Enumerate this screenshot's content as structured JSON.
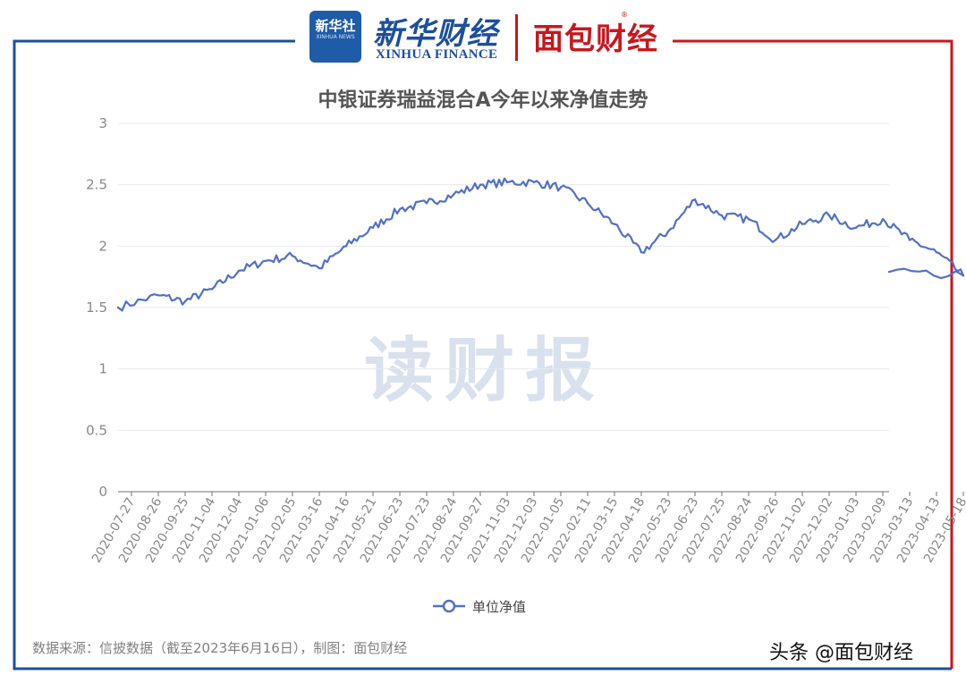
{
  "header": {
    "logo_xinhua_she": "新华社",
    "logo_xinhua_news": "XINHUA NEWS",
    "xinhua_cn": "新华财经",
    "xinhua_en": "XINHUA FINANCE",
    "mianbao_logo": "面包财经",
    "registered_mark": "®"
  },
  "watermark": "读财报",
  "footer": {
    "source": "数据来源：信披数据（截至2023年6月16日），制图：面包财经",
    "signature": "头条 @面包财经"
  },
  "colors": {
    "line": "#5470c6",
    "frame_blue": "#1d4f9c",
    "frame_red": "#c8171e",
    "grid": "#e6e9ef",
    "axis_text": "#888888"
  },
  "chart_data": {
    "type": "line",
    "title": "中银证券瑞益混合A今年以来净值走势",
    "xlabel": "",
    "ylabel": "",
    "ylim": [
      0,
      3
    ],
    "yticks": [
      "0",
      "0.5",
      "1",
      "1.5",
      "2",
      "2.5",
      "3"
    ],
    "grid": true,
    "legend": "bottom-center",
    "x": [
      "2020-07-27",
      "2020-08-26",
      "2020-09-25",
      "2020-11-04",
      "2020-12-04",
      "2021-01-06",
      "2021-02-05",
      "2021-03-16",
      "2021-04-16",
      "2021-05-21",
      "2021-06-23",
      "2021-07-23",
      "2021-08-24",
      "2021-09-27",
      "2021-11-03",
      "2021-12-03",
      "2022-01-05",
      "2022-02-11",
      "2022-03-15",
      "2022-04-18",
      "2022-05-23",
      "2022-06-23",
      "2022-07-25",
      "2022-08-24",
      "2022-09-26",
      "2022-11-02",
      "2022-12-02",
      "2023-01-03",
      "2023-02-09",
      "2023-03-13",
      "2023-04-13",
      "2023-05-18"
    ],
    "series": [
      {
        "name": "单位净值",
        "values": [
          1.5,
          1.6,
          1.55,
          1.65,
          1.8,
          1.88,
          1.92,
          1.82,
          2.0,
          2.15,
          2.3,
          2.35,
          2.42,
          2.5,
          2.52,
          2.52,
          2.48,
          2.35,
          2.18,
          1.95,
          2.12,
          2.38,
          2.25,
          2.22,
          2.05,
          2.18,
          2.25,
          2.15,
          2.22,
          2.05,
          1.95,
          1.76
        ],
        "last_value": 1.79
      }
    ]
  }
}
